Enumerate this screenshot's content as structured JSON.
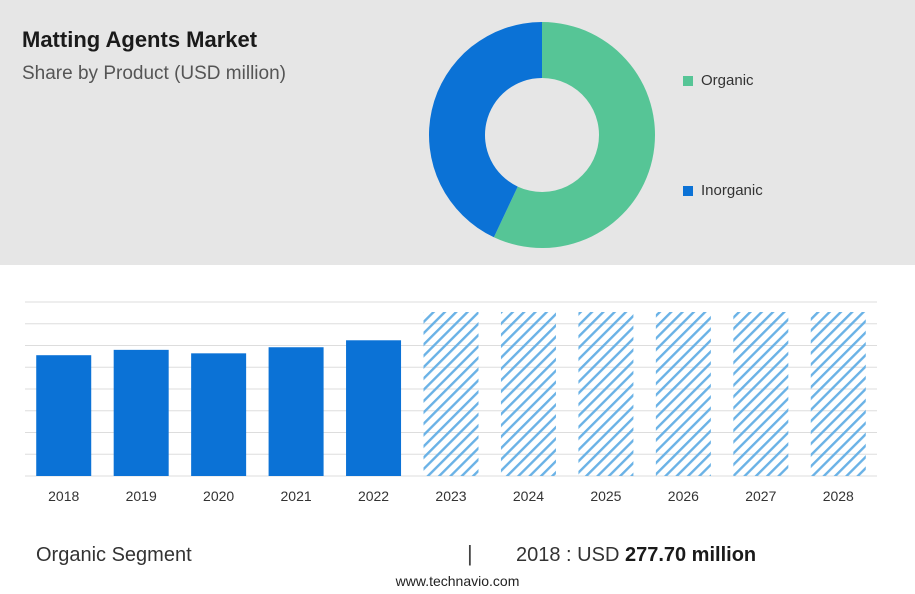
{
  "header": {
    "title": "Matting Agents Market",
    "subtitle": "Share by Product (USD million)"
  },
  "colors": {
    "organic": "#56c596",
    "inorganic": "#0b72d6",
    "bar": "#0b72d6",
    "forecast_hatch": "#6ab2e6",
    "grid": "#dddddd"
  },
  "chart_data": [
    {
      "type": "pie",
      "donut": true,
      "categories": [
        "Organic",
        "Inorganic"
      ],
      "values": [
        57,
        43
      ],
      "legend": "right"
    },
    {
      "type": "bar",
      "categories": [
        "2018",
        "2019",
        "2020",
        "2021",
        "2022",
        "2023",
        "2024",
        "2025",
        "2026",
        "2027",
        "2028"
      ],
      "values": [
        277.7,
        290,
        282,
        296,
        312,
        null,
        null,
        null,
        null,
        null,
        null
      ],
      "forecast": [
        false,
        false,
        false,
        false,
        false,
        true,
        true,
        true,
        true,
        true,
        true
      ],
      "ylim": [
        0,
        400
      ],
      "grid": true
    }
  ],
  "footer": {
    "segment_label": "Organic Segment",
    "divider": "|",
    "year_text": "2018 : USD ",
    "value_text": "277.70 million",
    "url": "www.technavio.com"
  }
}
